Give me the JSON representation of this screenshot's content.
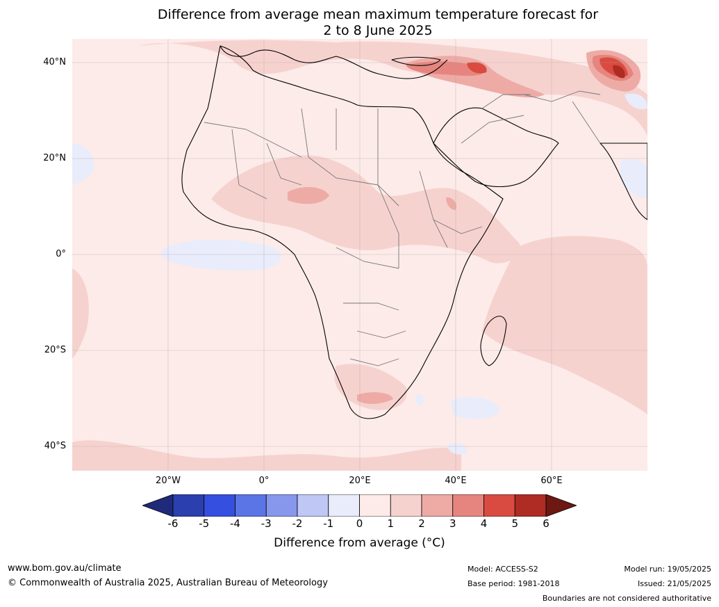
{
  "title": {
    "line1": "Difference from average mean maximum temperature forecast for",
    "line2": "2 to 8 June 2025"
  },
  "map": {
    "lat_labels": [
      "40°N",
      "20°N",
      "0°",
      "20°S",
      "40°S"
    ],
    "lon_labels": [
      "20°W",
      "0°",
      "20°E",
      "40°E",
      "60°E"
    ],
    "background_color": "#fcebe9"
  },
  "legend": {
    "ticks": [
      "-6",
      "-5",
      "-4",
      "-3",
      "-2",
      "-1",
      "0",
      "1",
      "2",
      "3",
      "4",
      "5",
      "6"
    ],
    "colors": [
      "#1f2a7a",
      "#2b3fae",
      "#3550e0",
      "#5b74e6",
      "#8797ec",
      "#bfc8f4",
      "#e8ecfb",
      "#fcebe9",
      "#f6d2cf",
      "#eeaba6",
      "#e6857f",
      "#d94b40",
      "#ae2c24",
      "#6e1812"
    ],
    "label": "Difference from average (°C)"
  },
  "footer": {
    "website": "www.bom.gov.au/climate",
    "copyright": "© Commonwealth of Australia 2025, Australian Bureau of Meteorology",
    "model": "Model: ACCESS-S2",
    "base_period": "Base period: 1981-2018",
    "model_run": "Model run: 19/05/2025",
    "issued": "Issued: 21/05/2025",
    "disclaimer": "Boundaries are not considered authoritative"
  }
}
